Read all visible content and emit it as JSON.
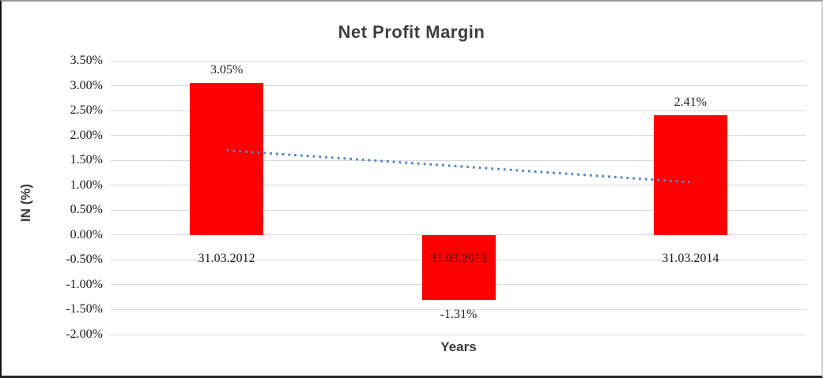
{
  "chart_data": {
    "type": "bar",
    "title": "Net Profit Margin",
    "xlabel": "Years",
    "ylabel": "IN (%)",
    "categories": [
      "31.03.2012",
      "31.03.2013",
      "31.03.2014"
    ],
    "values": [
      3.05,
      -1.31,
      2.41
    ],
    "data_labels": [
      "3.05%",
      "-1.31%",
      "2.41%"
    ],
    "y_ticks": [
      {
        "value": 3.5,
        "label": "3.50%"
      },
      {
        "value": 3.0,
        "label": "3.00%"
      },
      {
        "value": 2.5,
        "label": "2.50%"
      },
      {
        "value": 2.0,
        "label": "2.00%"
      },
      {
        "value": 1.5,
        "label": "1.50%"
      },
      {
        "value": 1.0,
        "label": "1.00%"
      },
      {
        "value": 0.5,
        "label": "0.50%"
      },
      {
        "value": 0.0,
        "label": "0.00%"
      },
      {
        "value": -0.5,
        "label": "-0.50%"
      },
      {
        "value": -1.0,
        "label": "-1.00%"
      },
      {
        "value": -1.5,
        "label": "-1.50%"
      },
      {
        "value": -2.0,
        "label": "-2.00%"
      }
    ],
    "ylim": [
      -2.0,
      3.5
    ],
    "grid": true,
    "legend": false,
    "bar_color": "#ff0000",
    "gridline_color": "#d9d9d9",
    "trendline": {
      "style": "dotted",
      "color": "#4f86c6",
      "value_start": 1.7,
      "value_end": 1.06,
      "start_category_index": 0,
      "end_category_index": 2
    }
  }
}
